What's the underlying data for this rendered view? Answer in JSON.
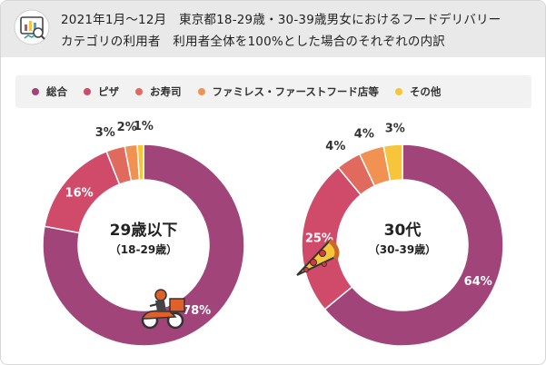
{
  "header": {
    "title_line1": "2021年1月～12月　東京都18-29歳・30-39歳男女におけるフードデリバリー",
    "title_line2": "カテゴリの利用者　利用者全体を100%とした場合のそれぞれの内訳"
  },
  "legend": [
    {
      "label": "総合",
      "color": "#a0447a"
    },
    {
      "label": "ピザ",
      "color": "#d04a6a"
    },
    {
      "label": "お寿司",
      "color": "#e06a5e"
    },
    {
      "label": "ファミレス・ファーストフード店等",
      "color": "#f19152"
    },
    {
      "label": "その他",
      "color": "#f6c53a"
    }
  ],
  "chart_data": [
    {
      "type": "pie",
      "center_label": "29歳以下",
      "center_sublabel": "（18-29歳）",
      "categories": [
        "総合",
        "ピザ",
        "お寿司",
        "ファミレス・ファーストフード店等",
        "その他"
      ],
      "values": [
        78,
        16,
        3,
        2,
        1
      ],
      "value_labels": [
        "78%",
        "16%",
        "3%",
        "2%",
        "1%"
      ],
      "icon": "delivery-scooter-icon"
    },
    {
      "type": "pie",
      "center_label": "30代",
      "center_sublabel": "（30-39歳）",
      "categories": [
        "総合",
        "ピザ",
        "お寿司",
        "ファミレス・ファーストフード店等",
        "その他"
      ],
      "values": [
        64,
        25,
        4,
        4,
        3
      ],
      "value_labels": [
        "64%",
        "25%",
        "4%",
        "4%",
        "3%"
      ],
      "icon": "pizza-slice-icon"
    }
  ]
}
